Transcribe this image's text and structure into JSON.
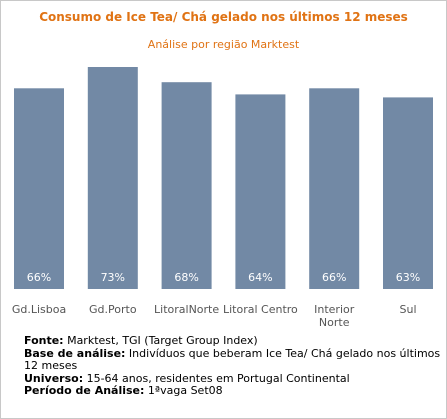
{
  "title": "Consumo de Ice Tea/ Chá gelado nos últimos 12 meses",
  "subtitle": "Análise por região Marktest",
  "colors": {
    "title": "#e07314",
    "bar": "#7289a5",
    "bar_label": "#ffffff",
    "axis_label": "#555555"
  },
  "chart_data": {
    "type": "bar",
    "categories": [
      "Gd.Lisboa",
      "Gd.Porto",
      "LitoralNorte",
      "Litoral Centro",
      "Interior Norte",
      "Sul"
    ],
    "values": [
      66,
      73,
      68,
      64,
      66,
      63
    ],
    "data_labels": [
      "66%",
      "73%",
      "68%",
      "64%",
      "66%",
      "63%"
    ],
    "unit": "%",
    "ylim": [
      0,
      73
    ],
    "grid": false,
    "legend": "none"
  },
  "footer": {
    "fonte_label": "Fonte:",
    "fonte_value": " Marktest, TGI (Target Group Index)",
    "base_label": "Base de análise:",
    "base_value": " Indivíduos que beberam Ice Tea/ Chá gelado nos últimos 12 meses",
    "universo_label": "Universo:",
    "universo_value": " 15-64 anos, residentes em Portugal Continental",
    "periodo_label": "Período de Análise:",
    "periodo_value": " 1ªvaga Set08"
  }
}
